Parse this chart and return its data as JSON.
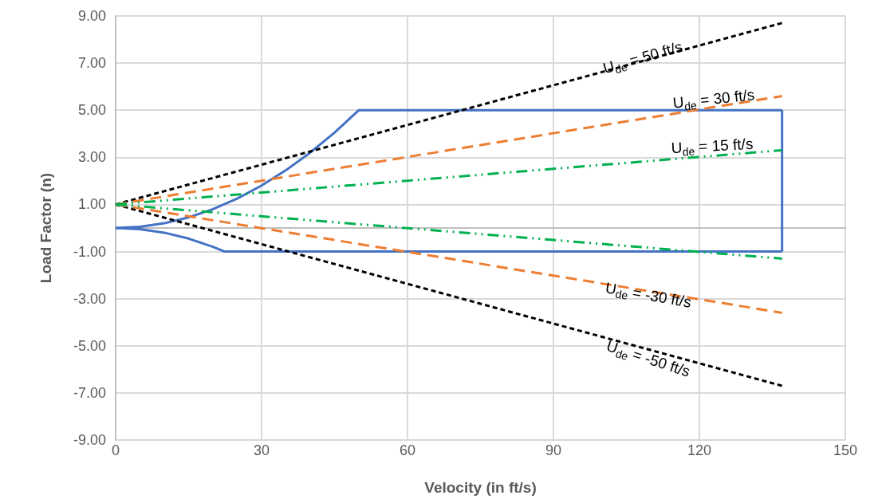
{
  "chart_data": {
    "type": "line",
    "xlabel": "Velocity (in ft/s)",
    "ylabel": "Load Factor (n)",
    "xlim": [
      0,
      150
    ],
    "xticks": [
      0,
      30,
      60,
      90,
      120,
      150
    ],
    "ylim": [
      -9,
      9
    ],
    "yticks": [
      {
        "value": -9,
        "label": "-9.00"
      },
      {
        "value": -7,
        "label": "-7.00"
      },
      {
        "value": -5,
        "label": "-5.00"
      },
      {
        "value": -3,
        "label": "-3.00"
      },
      {
        "value": -1,
        "label": "-1.00"
      },
      {
        "value": 1,
        "label": "1.00"
      },
      {
        "value": 3,
        "label": "3.00"
      },
      {
        "value": 5,
        "label": "5.00"
      },
      {
        "value": 7,
        "label": "7.00"
      },
      {
        "value": 9,
        "label": "9.00"
      }
    ],
    "grid": true,
    "marker": "none",
    "series": [
      {
        "color": "#4472c4",
        "line_style": "solid",
        "x": [
          0,
          5,
          10,
          15,
          20,
          25,
          30,
          35,
          40,
          45,
          50,
          137
        ],
        "values": [
          0,
          0.05,
          0.2,
          0.45,
          0.8,
          1.25,
          1.8,
          2.45,
          3.2,
          4.05,
          5,
          5
        ]
      },
      {
        "color": "#4472c4",
        "line_style": "solid",
        "x": [
          137,
          137
        ],
        "values": [
          5,
          -1
        ]
      },
      {
        "color": "#4472c4",
        "line_style": "solid",
        "x": [
          0,
          5,
          10,
          15,
          20,
          22.4,
          137
        ],
        "values": [
          0,
          -0.05,
          -0.2,
          -0.45,
          -0.8,
          -1,
          -1
        ]
      },
      {
        "color": "#000000",
        "line_style": "dotted",
        "x": [
          0,
          137
        ],
        "values": [
          1,
          8.7
        ]
      },
      {
        "color": "#000000",
        "line_style": "dotted",
        "x": [
          0,
          137
        ],
        "values": [
          1,
          -6.7
        ]
      },
      {
        "color": "#ed7d31",
        "line_style": "dashed",
        "x": [
          0,
          137
        ],
        "values": [
          1,
          5.6
        ]
      },
      {
        "color": "#ed7d31",
        "line_style": "dashed",
        "x": [
          0,
          137
        ],
        "values": [
          1,
          -3.6
        ]
      },
      {
        "color": "#00b050",
        "line_style": "dashdot",
        "x": [
          0,
          137
        ],
        "values": [
          1,
          3.3
        ]
      },
      {
        "color": "#00b050",
        "line_style": "dashdot",
        "x": [
          0,
          137
        ],
        "values": [
          1,
          -1.3
        ]
      }
    ],
    "annotations": [
      "U$_{de}$ = 50 ft/s",
      "U$_{de}$ = 30 ft/s",
      "U$_{de}$ = 15 ft/s",
      "U$_{de}$ = -30 ft/s",
      "U$_{de}$ = -50 ft/s"
    ]
  }
}
